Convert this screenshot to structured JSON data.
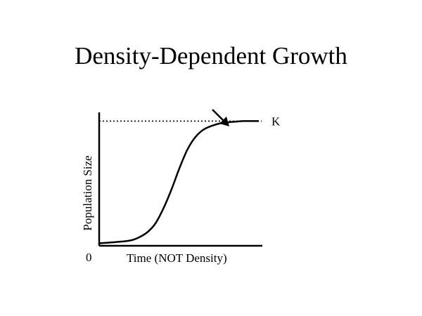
{
  "slide": {
    "title": "Density-Dependent Growth"
  },
  "chart_data": {
    "type": "line",
    "title": "Density-Dependent Growth",
    "xlabel": "Time (NOT Density)",
    "ylabel": "Population Size",
    "origin_label": "0",
    "carrying_capacity_label": "K",
    "carrying_capacity": 1.0,
    "xlim": [
      0,
      1
    ],
    "ylim": [
      0,
      1.07
    ],
    "grid": false,
    "legend": "none",
    "annotations": [
      {
        "type": "arrow",
        "points_to": "carrying-capacity-line"
      }
    ],
    "series": [
      {
        "x": [
          0,
          0.05,
          0.1,
          0.15,
          0.2,
          0.25,
          0.3,
          0.35,
          0.4,
          0.45,
          0.5,
          0.55,
          0.6,
          0.65,
          0.7,
          0.75,
          0.8,
          0.85,
          0.9,
          0.95,
          1.0
        ],
        "y": [
          0.02,
          0.025,
          0.03,
          0.035,
          0.045,
          0.07,
          0.11,
          0.18,
          0.3,
          0.45,
          0.62,
          0.77,
          0.87,
          0.93,
          0.96,
          0.98,
          0.99,
          0.995,
          1.0,
          1.0,
          1.0
        ]
      }
    ],
    "colors": {
      "curve": "#000000",
      "axes": "#000000"
    }
  }
}
